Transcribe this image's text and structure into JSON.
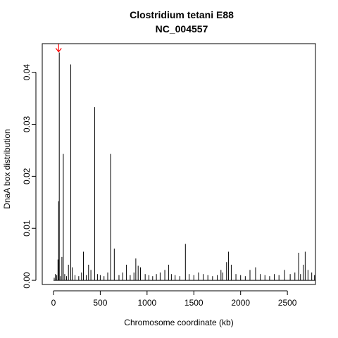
{
  "chart_data": {
    "type": "line",
    "title_line1": "Clostridium tetani E88",
    "title_line2": "NC_004557",
    "xlabel": "Chromosome coordinate (kb)",
    "ylabel": "DnaA box distribution",
    "xlim": [
      -120,
      2800
    ],
    "ylim": [
      -0.0008,
      0.0455
    ],
    "x_ticks": [
      0,
      500,
      1000,
      1500,
      2000,
      2500
    ],
    "y_ticks": [
      0.0,
      0.01,
      0.02,
      0.03,
      0.04
    ],
    "y_tick_labels": [
      "0.00",
      "0.01",
      "0.02",
      "0.03",
      "0.04"
    ],
    "grid": false,
    "series": [
      {
        "x": [
          8,
          20,
          35,
          48,
          55,
          62,
          75,
          90,
          105,
          120,
          140,
          160,
          185,
          200,
          230,
          270,
          300,
          320,
          350,
          375,
          400,
          440,
          470,
          500,
          540,
          580,
          610,
          650,
          700,
          740,
          780,
          820,
          860,
          880,
          905,
          930,
          980,
          1020,
          1060,
          1100,
          1140,
          1190,
          1230,
          1260,
          1300,
          1350,
          1410,
          1450,
          1500,
          1550,
          1600,
          1650,
          1700,
          1750,
          1790,
          1810,
          1850,
          1870,
          1900,
          1950,
          2000,
          2050,
          2100,
          2160,
          2210,
          2260,
          2310,
          2360,
          2410,
          2470,
          2530,
          2580,
          2620,
          2640,
          2670,
          2690,
          2720,
          2760,
          2790
        ],
        "y": [
          0.0005,
          0.0012,
          0.001,
          0.004,
          0.0152,
          0.0438,
          0.0008,
          0.0045,
          0.0243,
          0.0012,
          0.0008,
          0.003,
          0.0415,
          0.0025,
          0.001,
          0.0008,
          0.0015,
          0.0055,
          0.001,
          0.003,
          0.002,
          0.0333,
          0.0012,
          0.001,
          0.0008,
          0.0015,
          0.0243,
          0.0061,
          0.001,
          0.0015,
          0.003,
          0.001,
          0.0015,
          0.0042,
          0.0028,
          0.0025,
          0.0012,
          0.001,
          0.0008,
          0.0012,
          0.0015,
          0.002,
          0.003,
          0.0012,
          0.001,
          0.0008,
          0.007,
          0.0012,
          0.001,
          0.0015,
          0.0012,
          0.001,
          0.0008,
          0.001,
          0.002,
          0.0015,
          0.0035,
          0.0055,
          0.003,
          0.0012,
          0.001,
          0.0008,
          0.002,
          0.0025,
          0.0012,
          0.001,
          0.0008,
          0.0012,
          0.001,
          0.002,
          0.0012,
          0.0015,
          0.0053,
          0.0012,
          0.003,
          0.0055,
          0.002,
          0.0015,
          0.001
        ]
      }
    ],
    "annotations": [
      {
        "type": "arrow",
        "color": "#ff0000",
        "x": 55,
        "y": 0.0438
      }
    ],
    "colors": {
      "spikes": "#000000",
      "marker": "#ff0000"
    }
  }
}
